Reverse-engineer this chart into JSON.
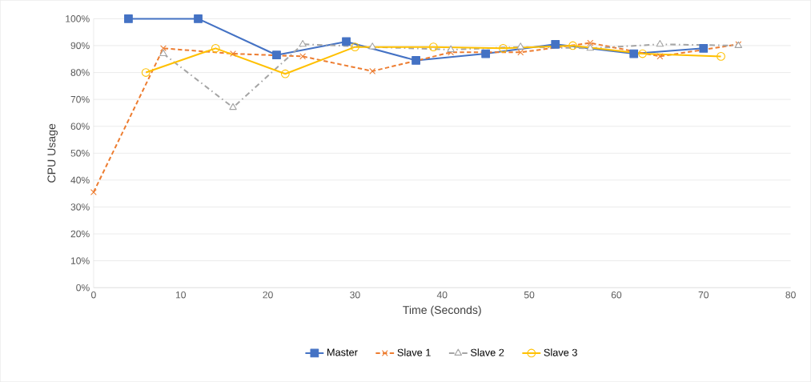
{
  "chart_data": {
    "type": "line",
    "xlabel": "Time (Seconds)",
    "ylabel": "CPU Usage",
    "xlim": [
      0,
      80
    ],
    "xticks": [
      0,
      10,
      20,
      30,
      40,
      50,
      60,
      70,
      80
    ],
    "ylim": [
      0,
      100
    ],
    "yticks": [
      {
        "value": 0,
        "label": "0%"
      },
      {
        "value": 10,
        "label": "10%"
      },
      {
        "value": 20,
        "label": "20%"
      },
      {
        "value": 30,
        "label": "30%"
      },
      {
        "value": 40,
        "label": "40%"
      },
      {
        "value": 50,
        "label": "50%"
      },
      {
        "value": 60,
        "label": "60%"
      },
      {
        "value": 70,
        "label": "70%"
      },
      {
        "value": 80,
        "label": "80%"
      },
      {
        "value": 90,
        "label": "90%"
      },
      {
        "value": 100,
        "label": "100%"
      }
    ],
    "grid": "y",
    "legend": "bottom",
    "series": [
      {
        "name": "Master",
        "color": "#4472c4",
        "marker": "square",
        "line_style": "solid",
        "x": [
          4,
          12,
          21,
          29,
          37,
          45,
          53,
          62,
          70
        ],
        "values": [
          100,
          100,
          86.5,
          91.5,
          84.5,
          87,
          90.5,
          87,
          89
        ]
      },
      {
        "name": "Slave 1",
        "color": "#ed7d31",
        "marker": "cross",
        "line_style": "dashed",
        "x": [
          0,
          8,
          16,
          24,
          32,
          41,
          49,
          57,
          65,
          74
        ],
        "values": [
          35.5,
          89,
          87,
          86,
          80.5,
          87.5,
          87.5,
          91,
          86,
          90.5
        ]
      },
      {
        "name": "Slave 2",
        "color": "#a5a5a5",
        "marker": "triangle",
        "line_style": "dashdot",
        "x": [
          8,
          16,
          24,
          32,
          41,
          49,
          57,
          65,
          74
        ],
        "values": [
          87,
          67,
          90.5,
          89.5,
          88.5,
          89.5,
          89,
          90.5,
          90
        ]
      },
      {
        "name": "Slave 3",
        "color": "#ffc000",
        "marker": "circle",
        "line_style": "solid",
        "x": [
          6,
          14,
          22,
          30,
          39,
          47,
          55,
          63,
          72
        ],
        "values": [
          80,
          89,
          79.5,
          89.5,
          89.5,
          89,
          90,
          87,
          86
        ]
      }
    ]
  }
}
